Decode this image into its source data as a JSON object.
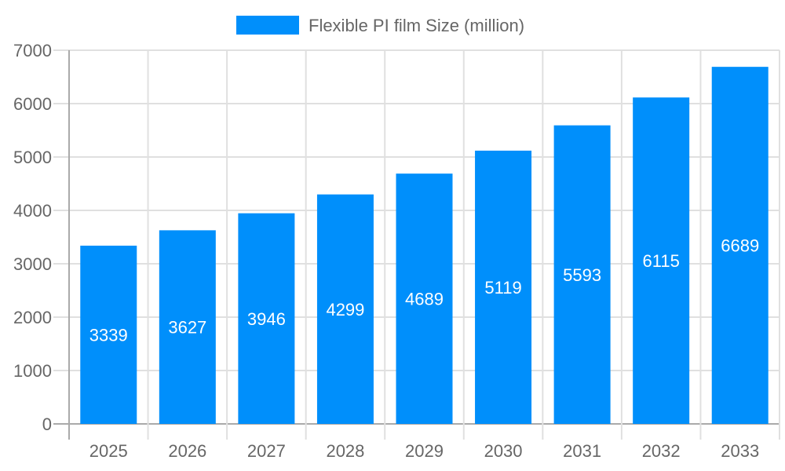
{
  "chart_data": {
    "type": "bar",
    "categories": [
      "2025",
      "2026",
      "2027",
      "2028",
      "2029",
      "2030",
      "2031",
      "2032",
      "2033"
    ],
    "series": [
      {
        "name": "Flexible PI film Size (million)",
        "values": [
          3339,
          3627,
          3946,
          4299,
          4689,
          5119,
          5593,
          6115,
          6689
        ],
        "color": "#008ffb"
      }
    ],
    "ylim": [
      0,
      7000
    ],
    "yticks": [
      0,
      1000,
      2000,
      3000,
      4000,
      5000,
      6000,
      7000
    ],
    "grid": true,
    "legend": "top-center",
    "data_labels": true
  }
}
